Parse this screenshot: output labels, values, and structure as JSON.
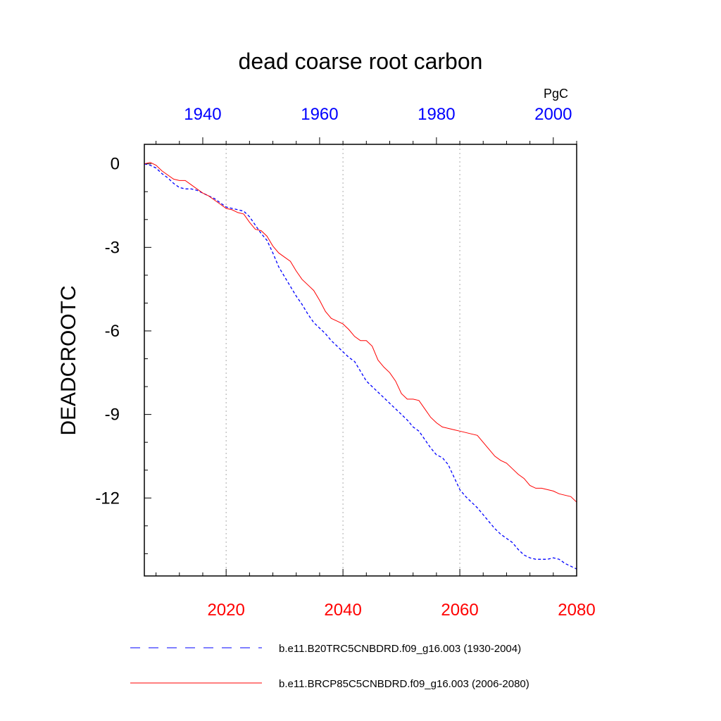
{
  "chart_data": {
    "type": "line",
    "title": "dead coarse root carbon",
    "ylabel": "DEADCROOTC",
    "units": "PgC",
    "ylim": [
      -14.8,
      0.7
    ],
    "yticks": [
      0,
      -3,
      -6,
      -9,
      -12
    ],
    "grid": "vertical dotted lines at bottom-axis major ticks",
    "legend_position": "bottom",
    "bottom_axis": {
      "range": [
        2006,
        2080
      ],
      "ticks": [
        2020,
        2040,
        2060,
        2080
      ],
      "color": "#ff0000"
    },
    "top_axis": {
      "range": [
        1930,
        2004
      ],
      "ticks": [
        1940,
        1960,
        1980,
        2000
      ],
      "color": "#0000ff"
    },
    "series": [
      {
        "name": "b.e11.B20TRC5CNBDRD.f09_g16.003 (1930-2004)",
        "color": "#0000ff",
        "dash": "dashed",
        "axis": "top",
        "x_start": 1930,
        "values": [
          0,
          -0.05,
          -0.15,
          -0.35,
          -0.5,
          -0.7,
          -0.85,
          -0.9,
          -0.9,
          -0.95,
          -1.05,
          -1.15,
          -1.25,
          -1.4,
          -1.55,
          -1.6,
          -1.65,
          -1.7,
          -1.9,
          -2.2,
          -2.5,
          -2.75,
          -3.2,
          -3.7,
          -4.05,
          -4.4,
          -4.75,
          -5.05,
          -5.4,
          -5.7,
          -5.9,
          -6.1,
          -6.35,
          -6.55,
          -6.75,
          -6.95,
          -7.1,
          -7.45,
          -7.8,
          -8.0,
          -8.2,
          -8.4,
          -8.6,
          -8.8,
          -9.0,
          -9.2,
          -9.45,
          -9.6,
          -9.9,
          -10.2,
          -10.45,
          -10.55,
          -10.8,
          -11.25,
          -11.7,
          -11.95,
          -12.15,
          -12.35,
          -12.6,
          -12.85,
          -13.1,
          -13.3,
          -13.45,
          -13.6,
          -13.85,
          -14.05,
          -14.15,
          -14.2,
          -14.2,
          -14.2,
          -14.15,
          -14.2,
          -14.35,
          -14.45,
          -14.55
        ]
      },
      {
        "name": "b.e11.BRCP85C5CNBDRD.f09_g16.003 (2006-2080)",
        "color": "#ff0000",
        "dash": "solid",
        "axis": "bottom",
        "x_start": 2006,
        "values": [
          0,
          0.05,
          -0.05,
          -0.25,
          -0.4,
          -0.55,
          -0.6,
          -0.6,
          -0.75,
          -0.9,
          -1.05,
          -1.15,
          -1.3,
          -1.45,
          -1.6,
          -1.65,
          -1.75,
          -1.8,
          -2.1,
          -2.35,
          -2.4,
          -2.6,
          -2.95,
          -3.2,
          -3.35,
          -3.5,
          -3.85,
          -4.15,
          -4.35,
          -4.55,
          -4.9,
          -5.3,
          -5.55,
          -5.65,
          -5.75,
          -5.95,
          -6.2,
          -6.35,
          -6.35,
          -6.55,
          -7.05,
          -7.3,
          -7.5,
          -7.8,
          -8.25,
          -8.45,
          -8.45,
          -8.5,
          -8.8,
          -9.1,
          -9.3,
          -9.45,
          -9.5,
          -9.55,
          -9.6,
          -9.65,
          -9.7,
          -9.75,
          -10.0,
          -10.25,
          -10.5,
          -10.65,
          -10.75,
          -10.95,
          -11.15,
          -11.3,
          -11.55,
          -11.65,
          -11.65,
          -11.7,
          -11.75,
          -11.85,
          -11.9,
          -11.95,
          -12.15
        ]
      }
    ]
  }
}
